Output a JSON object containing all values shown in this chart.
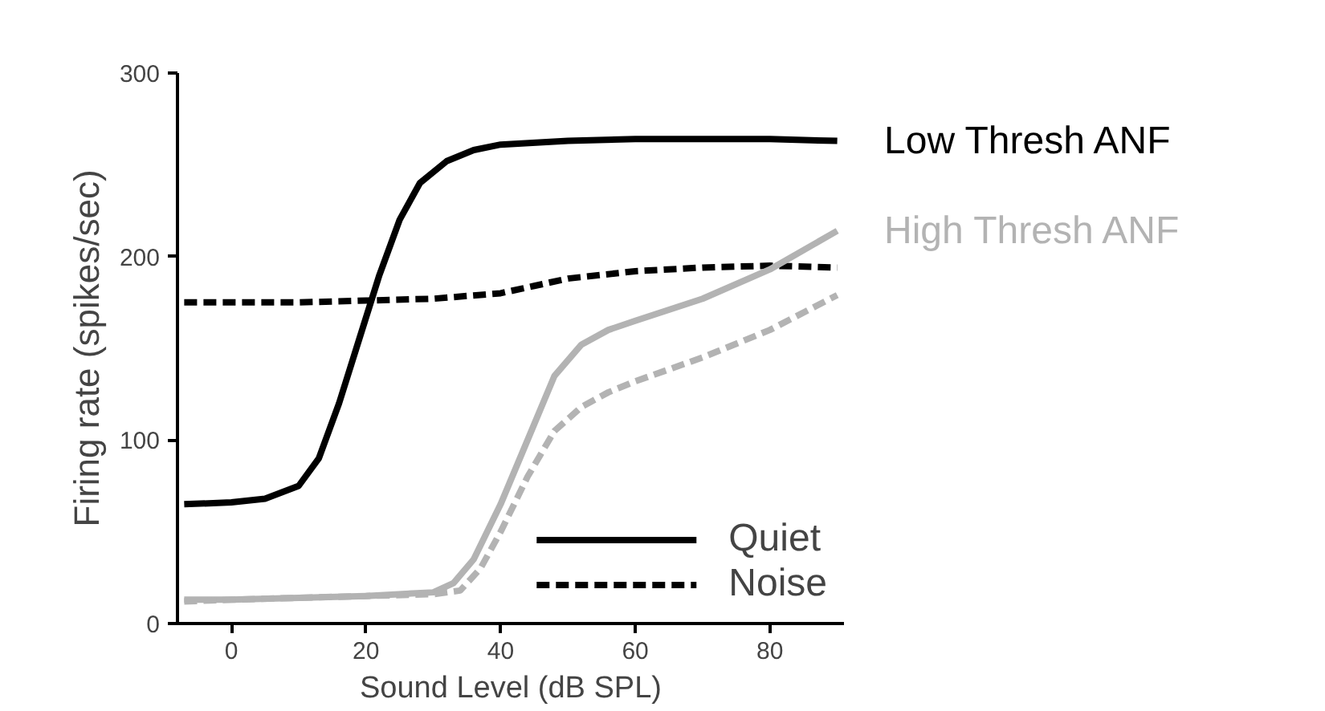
{
  "chart_data": {
    "type": "line",
    "xlabel": "Sound Level (dB SPL)",
    "ylabel": "Firing rate (spikes/sec)",
    "xlim": [
      -8,
      91
    ],
    "ylim": [
      0,
      300
    ],
    "xticks": [
      0,
      20,
      40,
      60,
      80
    ],
    "yticks": [
      0,
      100,
      200,
      300
    ],
    "grid": false,
    "legend": "bottom right",
    "marker": "none",
    "series": [
      {
        "name": "Quiet",
        "color": "#000000",
        "line_style": "solid",
        "x": [
          -7,
          0,
          5,
          10,
          13,
          16,
          19,
          22,
          25,
          28,
          32,
          36,
          40,
          50,
          60,
          70,
          80,
          90
        ],
        "values": [
          65,
          66,
          68,
          75,
          90,
          120,
          155,
          190,
          220,
          240,
          252,
          258,
          261,
          263,
          264,
          264,
          264,
          263
        ]
      },
      {
        "name": "Noise",
        "color": "#000000",
        "line_style": "dashed",
        "x": [
          -7,
          0,
          10,
          20,
          30,
          40,
          45,
          50,
          55,
          60,
          70,
          80,
          90
        ],
        "values": [
          175,
          175,
          175,
          176,
          177,
          180,
          184,
          188,
          190,
          192,
          194,
          195,
          194
        ]
      },
      {
        "color": "#b3b3b3",
        "line_style": "solid",
        "x": [
          -7,
          0,
          10,
          20,
          30,
          33,
          36,
          40,
          44,
          48,
          52,
          56,
          60,
          70,
          80,
          90
        ],
        "values": [
          13,
          13,
          14,
          15,
          17,
          22,
          35,
          65,
          100,
          135,
          152,
          160,
          165,
          177,
          193,
          214
        ]
      },
      {
        "color": "#b3b3b3",
        "line_style": "dashed",
        "x": [
          -7,
          0,
          10,
          20,
          30,
          34,
          37,
          40,
          44,
          48,
          52,
          56,
          60,
          70,
          80,
          90
        ],
        "values": [
          12,
          13,
          14,
          15,
          16,
          18,
          30,
          50,
          80,
          105,
          118,
          126,
          132,
          145,
          160,
          179
        ]
      }
    ],
    "annotations": [
      "Low Thresh ANF",
      "High Thresh ANF"
    ]
  }
}
